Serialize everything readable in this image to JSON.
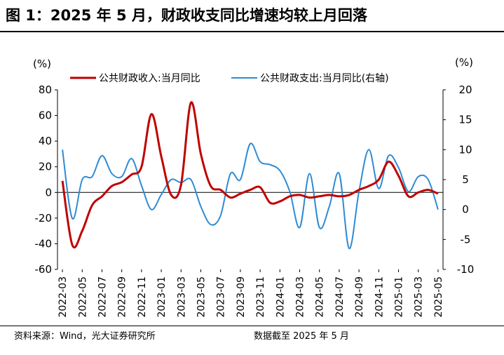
{
  "title": "图 1：2025 年 5 月，财政收支同比增速均较上月回落",
  "footer": {
    "source": "资料来源：Wind，光大证券研究所",
    "cutoff": "数据截至 2025 年 5 月"
  },
  "chart_data": {
    "type": "line",
    "y_left_unit": "(%)",
    "y_right_unit": "(%)",
    "ylim_left": [
      -60,
      80
    ],
    "yticks_left": [
      80,
      60,
      40,
      20,
      0,
      -20,
      -40,
      -60
    ],
    "ylim_right": [
      -10,
      20
    ],
    "yticks_right": [
      20,
      15,
      10,
      5,
      0,
      -5,
      -10
    ],
    "grid": false,
    "legend_position": "top",
    "x_tick_labels": [
      "2022-03",
      "2022-05",
      "2022-07",
      "2022-09",
      "2022-11",
      "2023-01",
      "2023-03",
      "2023-05",
      "2023-07",
      "2023-09",
      "2023-11",
      "2024-01",
      "2024-03",
      "2024-05",
      "2024-07",
      "2024-09",
      "2024-11",
      "2025-01",
      "2025-03",
      "2025-05"
    ],
    "x": [
      "2022-03",
      "2022-04",
      "2022-05",
      "2022-06",
      "2022-07",
      "2022-08",
      "2022-09",
      "2022-10",
      "2022-11",
      "2022-12",
      "2023-01",
      "2023-02",
      "2023-03",
      "2023-04",
      "2023-05",
      "2023-06",
      "2023-07",
      "2023-08",
      "2023-09",
      "2023-10",
      "2023-11",
      "2023-12",
      "2024-01",
      "2024-02",
      "2024-03",
      "2024-04",
      "2024-05",
      "2024-06",
      "2024-07",
      "2024-08",
      "2024-09",
      "2024-10",
      "2024-11",
      "2024-12",
      "2025-01",
      "2025-02",
      "2025-03",
      "2025-04",
      "2025-05"
    ],
    "series": [
      {
        "name": "公共财政收入:当月同比",
        "axis": "left",
        "color": "#c00000",
        "values": [
          9,
          -41,
          -30,
          -10,
          -3,
          5,
          8,
          14,
          20,
          61,
          28,
          -2,
          6,
          70,
          30,
          5,
          2,
          -4,
          -1,
          2,
          4,
          -8,
          -7,
          -3,
          -2,
          -4,
          -3,
          -2,
          -3,
          -2,
          2,
          5,
          10,
          24,
          13,
          -3,
          0,
          2,
          -1
        ]
      },
      {
        "name": "公共财政支出:当月同比(右轴)",
        "axis": "right",
        "color": "#2e8bd4",
        "values": [
          10,
          -1.5,
          5,
          5.5,
          9,
          6,
          5.5,
          8.5,
          4,
          0,
          2.5,
          5,
          4.5,
          5,
          0.5,
          -2.5,
          -1,
          6,
          5,
          11,
          8,
          7.5,
          6.5,
          3,
          -3,
          6,
          -3,
          0.5,
          6,
          -6.5,
          3,
          10,
          3.5,
          9,
          7,
          3,
          5.5,
          5,
          0
        ]
      }
    ]
  }
}
